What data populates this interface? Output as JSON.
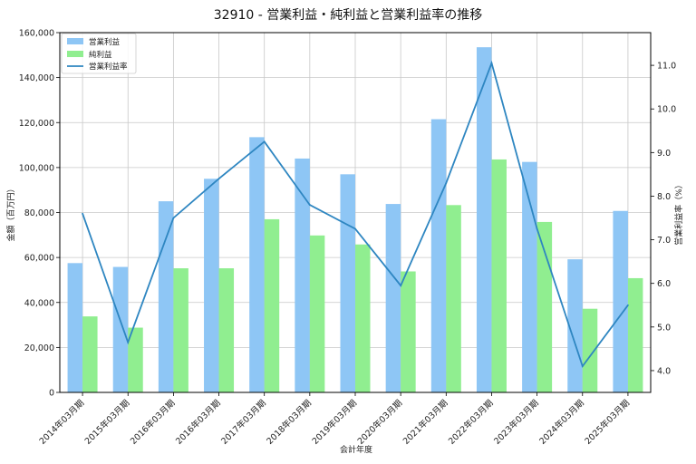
{
  "chart_data": {
    "type": "bar",
    "title": "32910 - 営業利益・純利益と営業利益率の推移",
    "xlabel": "会計年度",
    "ylabel": "金額（百万円）",
    "y2label": "営業利益率（%）",
    "categories": [
      "2014年03月期",
      "2015年03月期",
      "2016年03月期",
      "2016年03月期",
      "2017年03月期",
      "2018年03月期",
      "2019年03月期",
      "2020年03月期",
      "2021年03月期",
      "2022年03月期",
      "2023年03月期",
      "2024年03月期",
      "2025年03月期"
    ],
    "series": [
      {
        "name": "営業利益",
        "type": "bar",
        "axis": "left",
        "color": "#8ec6f5",
        "values": [
          57500,
          55800,
          85000,
          95000,
          113500,
          104000,
          97000,
          83800,
          121500,
          153500,
          102500,
          59200,
          80700
        ]
      },
      {
        "name": "純利益",
        "type": "bar",
        "axis": "left",
        "color": "#90ee90",
        "values": [
          33800,
          28800,
          55200,
          55200,
          77000,
          69800,
          65800,
          53800,
          83300,
          103600,
          75800,
          37200,
          50800
        ]
      },
      {
        "name": "営業利益率",
        "type": "line",
        "axis": "right",
        "color": "#2e86c1",
        "values": [
          7.6,
          4.65,
          7.5,
          8.4,
          9.25,
          7.8,
          7.25,
          5.95,
          8.3,
          11.05,
          7.25,
          4.1,
          5.5
        ]
      }
    ],
    "ylim": [
      0,
      160000
    ],
    "yticks": [
      0,
      20000,
      40000,
      60000,
      80000,
      100000,
      120000,
      140000,
      160000
    ],
    "ytick_labels": [
      "0",
      "20,000",
      "40,000",
      "60,000",
      "80,000",
      "100,000",
      "120,000",
      "140,000",
      "160,000"
    ],
    "y2lim": [
      3.5,
      11.75
    ],
    "y2ticks": [
      4.0,
      5.0,
      6.0,
      7.0,
      8.0,
      9.0,
      10.0,
      11.0
    ],
    "y2tick_labels": [
      "4.0",
      "5.0",
      "6.0",
      "7.0",
      "8.0",
      "9.0",
      "10.0",
      "11.0"
    ],
    "grid": true,
    "legend_position": "top-left"
  }
}
